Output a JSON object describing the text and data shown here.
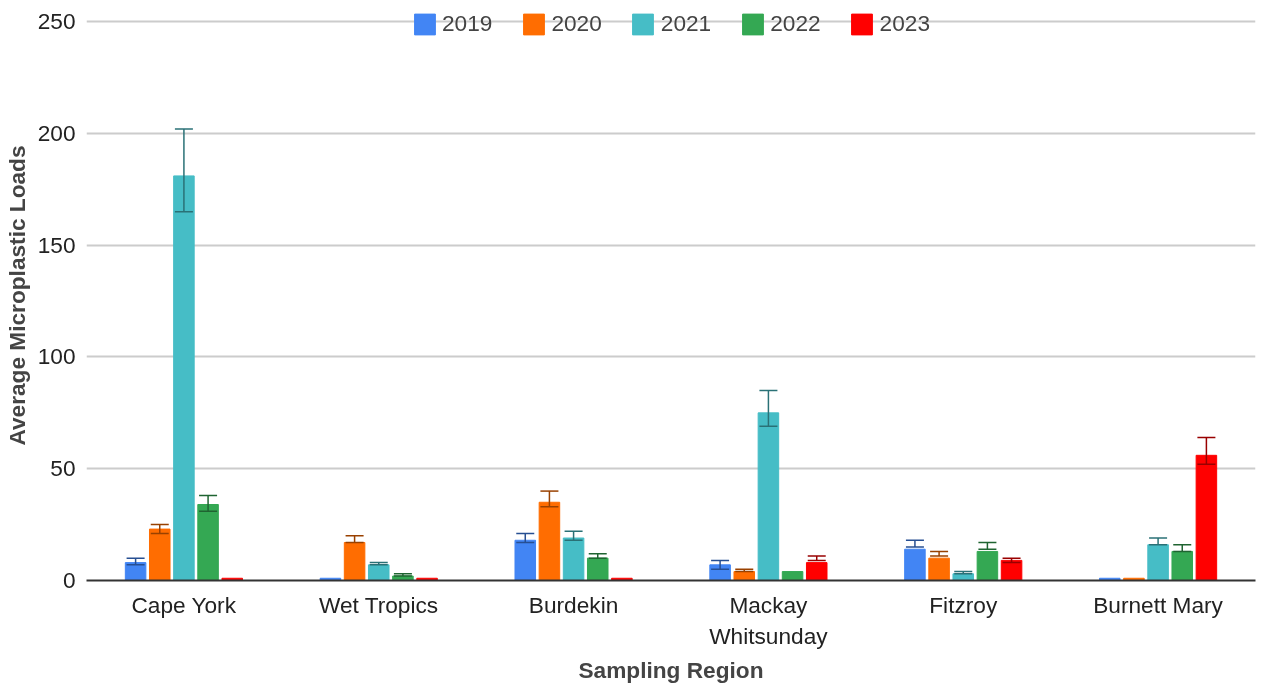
{
  "chart_data": {
    "type": "bar",
    "xlabel": "Sampling Region",
    "ylabel": "Average Microplastic Loads",
    "categories": [
      "Cape York",
      "Wet Tropics",
      "Burdekin",
      "Mackay Whitsunday",
      "Fitzroy",
      "Burnett Mary"
    ],
    "series": [
      {
        "name": "2019",
        "color": "#4285f4",
        "values": [
          8,
          1,
          18,
          7,
          14,
          1
        ],
        "errors": [
          [
            7,
            10
          ],
          null,
          [
            17,
            21
          ],
          [
            5,
            9
          ],
          [
            15,
            18
          ],
          null
        ]
      },
      {
        "name": "2020",
        "color": "#ff6d01",
        "values": [
          23,
          17,
          35,
          4,
          10,
          1
        ],
        "errors": [
          [
            21,
            25
          ],
          [
            17,
            20
          ],
          [
            33,
            40
          ],
          [
            4,
            5
          ],
          [
            11,
            13
          ],
          null
        ]
      },
      {
        "name": "2021",
        "color": "#46bdc6",
        "values": [
          181,
          7,
          19,
          75,
          3,
          16
        ],
        "errors": [
          [
            165,
            202
          ],
          [
            7,
            8
          ],
          [
            18,
            22
          ],
          [
            69,
            85
          ],
          [
            3,
            4
          ],
          [
            16,
            19
          ]
        ]
      },
      {
        "name": "2022",
        "color": "#34a853",
        "values": [
          34,
          2,
          10,
          4,
          13,
          13
        ],
        "errors": [
          [
            31,
            38
          ],
          [
            2,
            3
          ],
          [
            10,
            12
          ],
          null,
          [
            14,
            17
          ],
          [
            13,
            16
          ]
        ]
      },
      {
        "name": "2023",
        "color": "#ff0000",
        "values": [
          1,
          1,
          1,
          8,
          9,
          56
        ],
        "errors": [
          null,
          null,
          null,
          [
            9,
            11
          ],
          [
            8,
            10
          ],
          [
            52,
            64
          ]
        ]
      }
    ],
    "ylim": [
      0,
      255
    ],
    "yticks": [
      0,
      50,
      100,
      150,
      200,
      250
    ],
    "grid": "y",
    "legend": "top"
  }
}
